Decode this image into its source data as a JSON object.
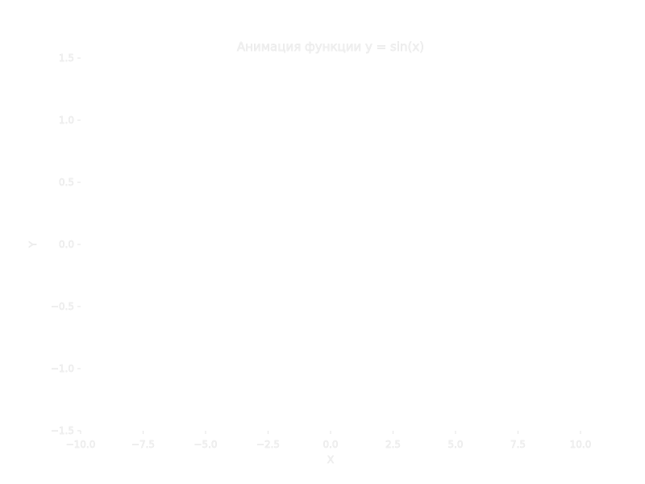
{
  "chart_data": {
    "type": "line",
    "title": "Анимация функции y = sin(x)",
    "xlabel": "X",
    "ylabel": "Y",
    "xlim": [
      -10,
      10
    ],
    "ylim": [
      -1.5,
      1.5
    ],
    "x_ticks": [
      "−10.0",
      "−7.5",
      "−5.0",
      "−2.5",
      "0.0",
      "2.5",
      "5.0",
      "7.5",
      "10.0"
    ],
    "y_ticks": [
      "1.5",
      "1.0",
      "0.5",
      "0.0",
      "−0.5",
      "−1.0",
      "−1.5"
    ],
    "series": [],
    "grid": false,
    "colors": {
      "background": "#ffffff",
      "text": "#f0f0f0",
      "text_edge": "#dcdcdc"
    }
  }
}
